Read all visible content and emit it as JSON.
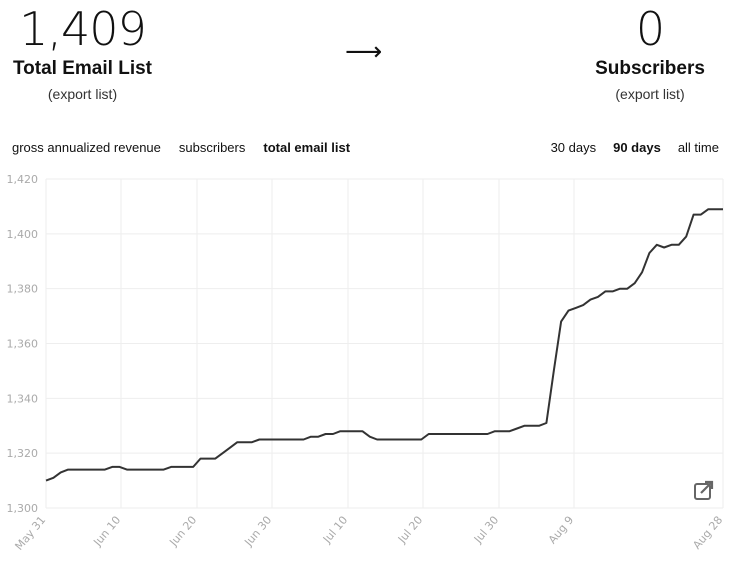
{
  "summary": {
    "left": {
      "value": "1,409",
      "label": "Total Email List",
      "export": "(export list)"
    },
    "arrow": "⟶",
    "right": {
      "value": "0",
      "label": "Subscribers",
      "export": "(export list)"
    }
  },
  "metric_tabs": [
    {
      "label": "gross annualized revenue",
      "active": false
    },
    {
      "label": "subscribers",
      "active": false
    },
    {
      "label": "total email list",
      "active": true
    }
  ],
  "range_tabs": [
    {
      "label": "30 days",
      "active": false
    },
    {
      "label": "90 days",
      "active": true
    },
    {
      "label": "all time",
      "active": false
    }
  ],
  "icons": {
    "external": "external-link-icon"
  },
  "chart_data": {
    "type": "line",
    "ylim": [
      1300,
      1420
    ],
    "yticks": [
      1300,
      1320,
      1340,
      1360,
      1380,
      1400,
      1420
    ],
    "ytick_labels": [
      "1,300",
      "1,320",
      "1,340",
      "1,360",
      "1,380",
      "1,400",
      "1,420"
    ],
    "xticks": [
      "May 31",
      "Jun 10",
      "Jun 20",
      "Jun 30",
      "Jul 10",
      "Jul 20",
      "Jul 30",
      "Aug 9",
      "Aug 28"
    ],
    "line_color": "#333333",
    "series": [
      {
        "values": [
          1310,
          1311,
          1313,
          1314,
          1314,
          1314,
          1314,
          1314,
          1314,
          1315,
          1315,
          1314,
          1314,
          1314,
          1314,
          1314,
          1314,
          1315,
          1315,
          1315,
          1315,
          1318,
          1318,
          1318,
          1320,
          1322,
          1324,
          1324,
          1324,
          1325,
          1325,
          1325,
          1325,
          1325,
          1325,
          1325,
          1326,
          1326,
          1327,
          1327,
          1328,
          1328,
          1328,
          1328,
          1326,
          1325,
          1325,
          1325,
          1325,
          1325,
          1325,
          1325,
          1327,
          1327,
          1327,
          1327,
          1327,
          1327,
          1327,
          1327,
          1327,
          1328,
          1328,
          1328,
          1329,
          1330,
          1330,
          1330,
          1331,
          1350,
          1368,
          1372,
          1373,
          1374,
          1376,
          1377,
          1379,
          1379,
          1380,
          1380,
          1382,
          1386,
          1393,
          1396,
          1395,
          1396,
          1396,
          1399,
          1407,
          1407,
          1409,
          1409,
          1409
        ]
      }
    ]
  }
}
